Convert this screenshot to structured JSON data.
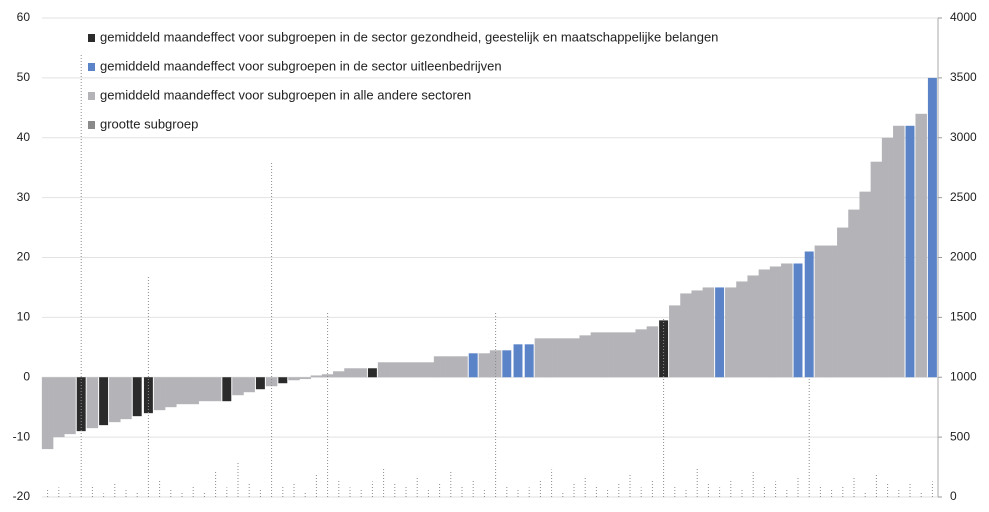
{
  "chart_data": {
    "type": "bar",
    "categories": [
      null,
      null,
      null,
      null,
      null,
      null,
      null,
      null,
      null,
      null,
      null,
      null,
      null,
      null,
      null,
      null,
      null,
      null,
      null,
      null,
      null,
      null,
      null,
      null,
      null,
      null,
      null,
      null,
      null,
      null,
      null,
      null,
      null,
      null,
      null,
      null,
      null,
      null,
      null,
      null,
      null,
      null,
      null,
      null,
      null,
      null,
      null,
      null,
      null,
      null,
      null,
      null,
      null,
      null,
      null,
      null,
      null,
      null,
      null,
      null,
      null,
      null,
      null,
      null,
      null,
      null,
      null,
      null,
      null,
      null,
      null,
      null,
      null,
      null,
      null,
      null,
      null,
      null,
      null,
      null
    ],
    "series": [
      {
        "name": "gemiddeld maandeffect voor subgroepen in de sector gezondheid, geestelijk en maatschappelijke belangen",
        "color": "#2b2b2b",
        "values": [
          null,
          null,
          null,
          -9,
          null,
          -8,
          null,
          null,
          -6.5,
          -6,
          null,
          null,
          null,
          null,
          null,
          null,
          -4,
          null,
          null,
          -2,
          null,
          -1,
          null,
          null,
          null,
          null,
          null,
          null,
          null,
          1.5,
          null,
          null,
          null,
          null,
          null,
          null,
          null,
          null,
          null,
          null,
          null,
          null,
          null,
          null,
          null,
          null,
          null,
          null,
          null,
          null,
          null,
          null,
          null,
          null,
          null,
          9.5,
          null,
          null,
          null,
          null,
          null,
          null,
          null,
          null,
          null,
          null,
          null,
          null,
          null,
          null,
          null,
          null,
          null,
          null,
          null,
          null,
          null,
          null,
          null,
          null
        ]
      },
      {
        "name": "gemiddeld maandeffect voor subgroepen in de sector uitleenbedrijven",
        "color": "#5b84c8",
        "values": [
          null,
          null,
          null,
          null,
          null,
          null,
          null,
          null,
          null,
          null,
          null,
          null,
          null,
          null,
          null,
          null,
          null,
          null,
          null,
          null,
          null,
          null,
          null,
          null,
          null,
          null,
          null,
          null,
          null,
          null,
          null,
          null,
          null,
          null,
          null,
          null,
          null,
          null,
          4,
          null,
          null,
          4.5,
          5.5,
          5.5,
          null,
          null,
          null,
          null,
          null,
          null,
          null,
          null,
          null,
          null,
          null,
          null,
          null,
          null,
          null,
          null,
          15,
          null,
          null,
          null,
          null,
          null,
          null,
          19,
          21,
          null,
          null,
          null,
          null,
          null,
          null,
          null,
          null,
          42,
          null,
          50
        ]
      },
      {
        "name": "gemiddeld maandeffect voor subgroepen in alle andere sectoren",
        "color": "#b4b4b8",
        "values": [
          -12,
          -10,
          -9.5,
          null,
          -8.5,
          null,
          -7.5,
          -7,
          null,
          null,
          -5.5,
          -5,
          -4.5,
          -4.5,
          -4,
          -4,
          null,
          -3,
          -2.5,
          null,
          -1.5,
          null,
          -0.5,
          -0.3,
          0.3,
          0.5,
          1,
          1.5,
          1.5,
          null,
          2.5,
          2.5,
          2.5,
          2.5,
          2.5,
          3.5,
          3.5,
          3.5,
          null,
          4,
          4.5,
          null,
          null,
          null,
          6.5,
          6.5,
          6.5,
          6.5,
          7,
          7.5,
          7.5,
          7.5,
          7.5,
          8,
          8.5,
          null,
          12,
          14,
          14.5,
          15,
          null,
          15,
          16,
          17,
          18,
          18.5,
          19,
          null,
          null,
          22,
          22,
          25,
          28,
          31,
          36,
          40,
          42,
          null,
          44,
          null
        ]
      },
      {
        "name": "grootte subgroep",
        "color": "#8a8a8a",
        "axis": "y2",
        "values": [
          60,
          80,
          40,
          3700,
          90,
          30,
          120,
          60,
          40,
          1850,
          150,
          70,
          50,
          100,
          40,
          220,
          80,
          300,
          120,
          60,
          2800,
          90,
          110,
          40,
          200,
          1550,
          150,
          80,
          60,
          130,
          240,
          110,
          90,
          170,
          60,
          120,
          210,
          90,
          140,
          70,
          1550,
          100,
          60,
          80,
          150,
          230,
          50,
          110,
          170,
          90,
          60,
          120,
          200,
          80,
          140,
          1500,
          90,
          60,
          250,
          110,
          80,
          150,
          60,
          220,
          90,
          130,
          70,
          170,
          1000,
          100,
          60,
          90,
          160,
          50,
          200,
          120,
          70,
          110,
          40,
          130
        ]
      }
    ],
    "ylim": [
      -20,
      60
    ],
    "yticks": [
      -20,
      -10,
      0,
      10,
      20,
      30,
      40,
      50,
      60
    ],
    "y2lim": [
      0,
      4000
    ],
    "y2ticks": [
      0,
      500,
      1000,
      1500,
      2000,
      2500,
      3000,
      3500,
      4000
    ],
    "grid": true
  }
}
